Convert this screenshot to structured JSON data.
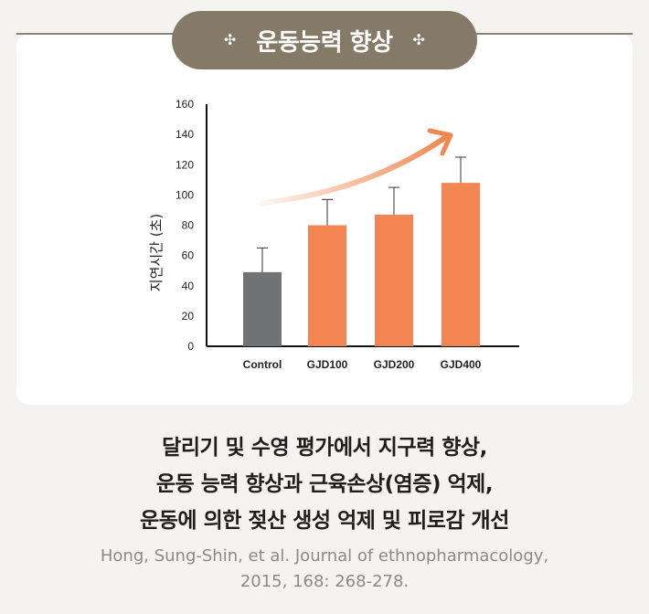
{
  "header": {
    "title": "운동능력 향상",
    "left_deco": "✣",
    "right_deco": "✣"
  },
  "chart_data": {
    "type": "bar",
    "categories": [
      "Control",
      "GJD100",
      "GJD200",
      "GJD400"
    ],
    "values": [
      49,
      80,
      87,
      108
    ],
    "errors": [
      16,
      17,
      18,
      17
    ],
    "ylabel": "지연시간 (초)",
    "ylim": [
      0,
      160
    ],
    "yticks": [
      0,
      20,
      40,
      60,
      80,
      100,
      120,
      140,
      160
    ],
    "colors": {
      "control": "#707275",
      "treatment": "#f38553",
      "trend_arrow": "#f08850"
    },
    "trend_arrow": true
  },
  "caption": {
    "line1": "달리기 및 수영 평가에서 지구력 향상,",
    "line2": "운동 능력 향상과 근육손상(염증) 억제,",
    "line3": "운동에 의한 젖산 생성 억제 및 피로감 개선"
  },
  "reference": {
    "line1": "Hong, Sung-Shin, et al. Journal of ethnopharmacology,",
    "line2": "2015, 168: 268-278."
  }
}
